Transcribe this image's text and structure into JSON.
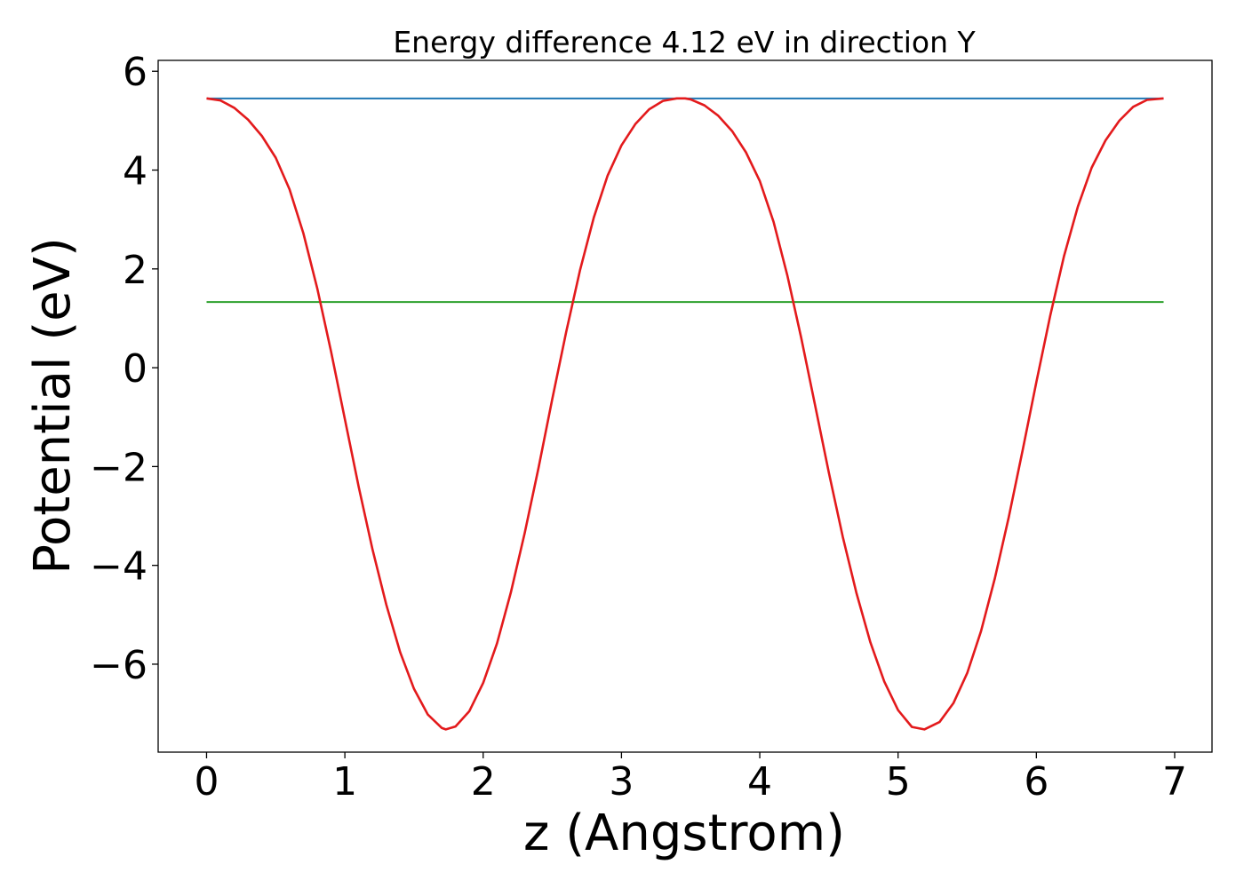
{
  "chart_data": {
    "type": "line",
    "title": "Energy difference 4.12 eV in direction Y",
    "xlabel": "z (Angstrom)",
    "ylabel": "Potential (eV)",
    "xlim": [
      -0.35,
      7.27
    ],
    "ylim": [
      -7.78,
      6.22
    ],
    "xticks": [
      0,
      1,
      2,
      3,
      4,
      5,
      6,
      7
    ],
    "xtick_labels": [
      "0",
      "1",
      "2",
      "3",
      "4",
      "5",
      "6",
      "7"
    ],
    "yticks": [
      -6,
      -4,
      -2,
      0,
      2,
      4,
      6
    ],
    "ytick_labels": [
      "−6",
      "−4",
      "−2",
      "0",
      "2",
      "4",
      "6"
    ],
    "grid": false,
    "legend": "none",
    "series": [
      {
        "color": "#1f77b4",
        "x": [
          0.0,
          6.92
        ],
        "y": [
          5.45,
          5.45
        ]
      },
      {
        "color": "#2ca02c",
        "x": [
          0.0,
          6.92
        ],
        "y": [
          1.33,
          1.33
        ]
      },
      {
        "color": "#e31a1c",
        "x": [
          0.0,
          0.1,
          0.2,
          0.3,
          0.4,
          0.5,
          0.6,
          0.7,
          0.8,
          0.9,
          1.0,
          1.1,
          1.2,
          1.3,
          1.4,
          1.5,
          1.6,
          1.7,
          1.73,
          1.8,
          1.9,
          2.0,
          2.1,
          2.2,
          2.3,
          2.4,
          2.5,
          2.6,
          2.7,
          2.8,
          2.9,
          3.0,
          3.1,
          3.2,
          3.3,
          3.4,
          3.46,
          3.5,
          3.6,
          3.7,
          3.8,
          3.9,
          4.0,
          4.1,
          4.2,
          4.3,
          4.4,
          4.5,
          4.6,
          4.7,
          4.8,
          4.9,
          5.0,
          5.1,
          5.19,
          5.3,
          5.4,
          5.5,
          5.6,
          5.7,
          5.8,
          5.9,
          6.0,
          6.1,
          6.2,
          6.3,
          6.4,
          6.5,
          6.6,
          6.7,
          6.8,
          6.92
        ],
        "y": [
          5.45,
          5.41,
          5.26,
          5.02,
          4.69,
          4.25,
          3.61,
          2.72,
          1.61,
          0.33,
          -1.04,
          -2.41,
          -3.68,
          -4.8,
          -5.76,
          -6.5,
          -7.02,
          -7.29,
          -7.32,
          -7.26,
          -6.95,
          -6.38,
          -5.58,
          -4.55,
          -3.35,
          -2.03,
          -0.63,
          0.72,
          1.97,
          3.04,
          3.89,
          4.5,
          4.93,
          5.23,
          5.4,
          5.45,
          5.45,
          5.43,
          5.31,
          5.1,
          4.79,
          4.36,
          3.78,
          2.95,
          1.86,
          0.6,
          -0.76,
          -2.13,
          -3.42,
          -4.57,
          -5.56,
          -6.35,
          -6.93,
          -7.27,
          -7.32,
          -7.17,
          -6.79,
          -6.18,
          -5.33,
          -4.26,
          -3.03,
          -1.68,
          -0.29,
          1.05,
          2.26,
          3.26,
          4.05,
          4.6,
          5.0,
          5.28,
          5.42,
          5.45
        ]
      }
    ]
  }
}
